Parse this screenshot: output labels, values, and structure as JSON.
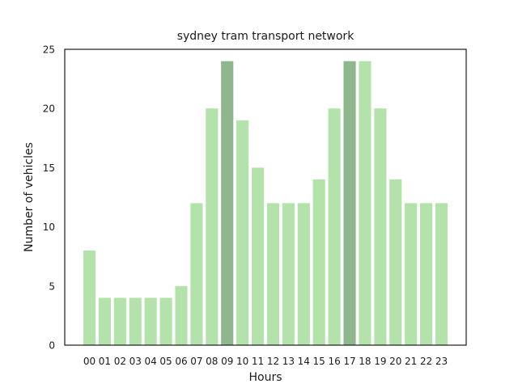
{
  "chart_data": {
    "type": "bar",
    "title": "sydney tram transport network",
    "xlabel": "Hours",
    "ylabel": "Number of vehicles",
    "categories": [
      "00",
      "01",
      "02",
      "03",
      "04",
      "05",
      "06",
      "07",
      "08",
      "09",
      "10",
      "11",
      "12",
      "13",
      "14",
      "15",
      "16",
      "17",
      "18",
      "19",
      "20",
      "21",
      "22",
      "23"
    ],
    "values": [
      8,
      4,
      4,
      4,
      4,
      4,
      5,
      12,
      20,
      24,
      19,
      15,
      12,
      12,
      12,
      14,
      20,
      24,
      24,
      20,
      14,
      12,
      12,
      12
    ],
    "highlighted_categories": [
      "09",
      "17"
    ],
    "ylim": [
      0,
      25
    ],
    "yticks": [
      0,
      5,
      10,
      15,
      20,
      25
    ],
    "grid": false,
    "colors": {
      "bar": "#b3e3aa",
      "bar_highlight": "#8fb78d",
      "axes": "#1a1a1a"
    }
  }
}
